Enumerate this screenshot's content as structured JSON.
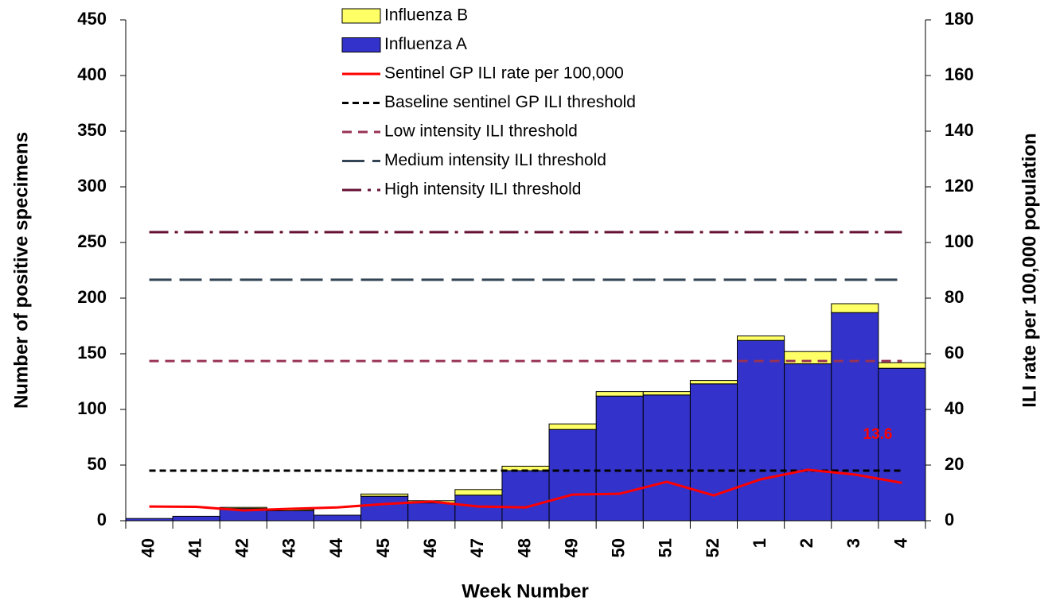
{
  "chart_data": {
    "type": "bar",
    "x_label": "Week Number",
    "y_label": "Number of positive specimens",
    "y2_label": "ILI rate per 100,000 population",
    "categories": [
      "40",
      "41",
      "42",
      "43",
      "44",
      "45",
      "46",
      "47",
      "48",
      "49",
      "50",
      "51",
      "52",
      "1",
      "2",
      "3",
      "4"
    ],
    "series": [
      {
        "name": "Influenza A",
        "type": "bar",
        "color": "#3333cc",
        "values": [
          2,
          4,
          11,
          9,
          5,
          22,
          16,
          23,
          45,
          82,
          112,
          113,
          123,
          162,
          141,
          187,
          137
        ]
      },
      {
        "name": "Influenza B",
        "type": "bar",
        "color": "#ffff66",
        "values": [
          0,
          0,
          1,
          1,
          0,
          2,
          2,
          5,
          4,
          5,
          4,
          3,
          3,
          4,
          11,
          8,
          5
        ]
      },
      {
        "name": "Sentinel GP ILI rate per 100,000",
        "type": "line",
        "axis": "y2",
        "color": "#ff0000",
        "values": [
          5.1,
          5,
          3.7,
          4.3,
          4.8,
          6,
          6.9,
          5.1,
          4.8,
          9.4,
          9.7,
          14,
          9.1,
          14.9,
          18.3,
          16.6,
          13.6
        ],
        "value_labels": [
          null,
          null,
          null,
          null,
          null,
          null,
          null,
          null,
          null,
          null,
          null,
          null,
          null,
          null,
          null,
          null,
          "13.6"
        ]
      }
    ],
    "thresholds": [
      {
        "name": "Baseline sentinel GP ILI threshold",
        "axis": "y2",
        "color": "#000000",
        "dash": "8 5",
        "value": 18
      },
      {
        "name": "Low intensity ILI threshold",
        "axis": "y2",
        "color": "#993355",
        "dash": "12 8",
        "value": 57.4
      },
      {
        "name": "Medium intensity ILI threshold",
        "axis": "y2",
        "color": "#334455",
        "dash": "28 10",
        "value": 86.6
      },
      {
        "name": "High intensity ILI threshold",
        "axis": "y2",
        "color": "#661133",
        "dash": "24 8 4 8",
        "value": 103.7
      }
    ],
    "ylim": [
      0,
      450
    ],
    "yticks": [
      0,
      50,
      100,
      150,
      200,
      250,
      300,
      350,
      400,
      450
    ],
    "y2lim": [
      0,
      180
    ],
    "y2ticks": [
      0,
      20,
      40,
      60,
      80,
      100,
      120,
      140,
      160,
      180
    ],
    "stacked": true
  }
}
